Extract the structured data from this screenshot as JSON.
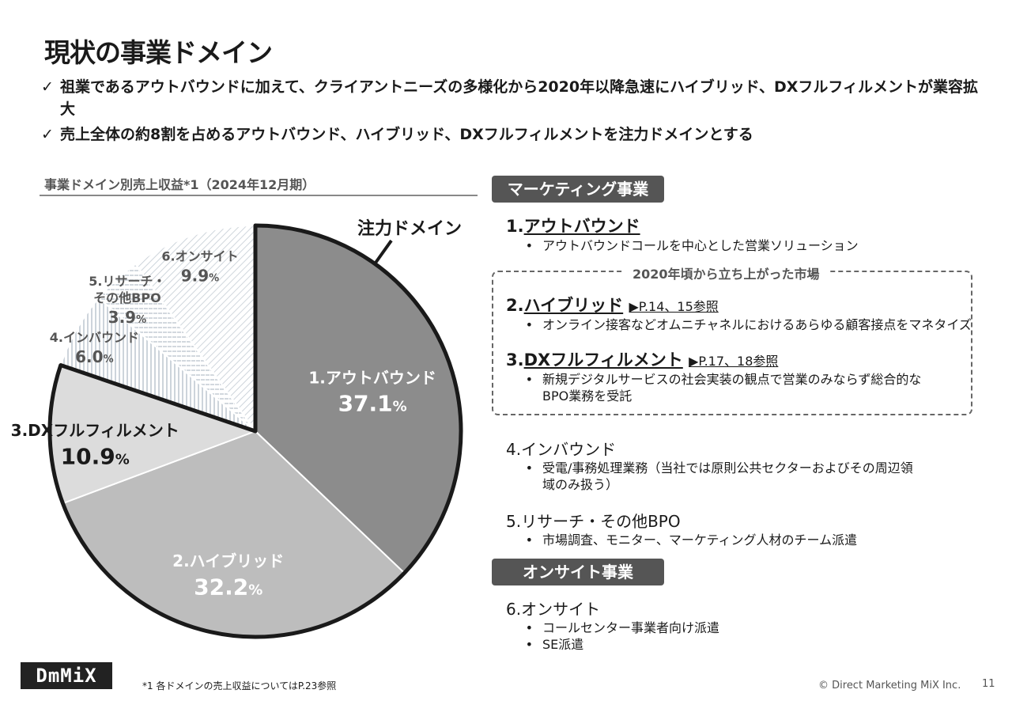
{
  "title": "現状の事業ドメイン",
  "bullets": [
    {
      "check": "✓",
      "text": "祖業であるアウトバウンドに加えて、クライアントニーズの多様化から2020年以降急速にハイブリッド、DXフルフィルメントが業容拡大"
    },
    {
      "check": "✓",
      "text": "売上全体の約8割を占めるアウトバウンド、ハイブリッド、DXフルフィルメントを注力ドメインとする"
    }
  ],
  "chart_label": "事業ドメイン別売上収益*1（2024年12月期）",
  "focus_label": "注力ドメイン",
  "chart_data": {
    "type": "pie",
    "unit": "%",
    "slices": [
      {
        "label": "1.アウトバウンド",
        "value": 37.1,
        "display": "37.1",
        "color": "#8c8c8c",
        "text_color": "#ffffff"
      },
      {
        "label": "2.ハイブリッド",
        "value": 32.2,
        "display": "32.2",
        "color": "#bdbdbd",
        "text_color": "#ffffff"
      },
      {
        "label": "3.DXフルフィルメント",
        "value": 10.9,
        "display": "10.9",
        "color": "#dcdcdc",
        "text_color": "#1a1a1a"
      },
      {
        "label": "4.インバウンド",
        "value": 6.0,
        "display": "6.0",
        "color": "#ffffff",
        "text_color": "#555555"
      },
      {
        "label": "5.リサーチ・その他BPO",
        "label_lines": [
          "5.リサーチ・",
          "その他BPO"
        ],
        "value": 3.9,
        "display": "3.9",
        "color": "#ffffff",
        "text_color": "#555555"
      },
      {
        "label": "6.オンサイト",
        "value": 9.9,
        "display": "9.9",
        "color": "#ffffff",
        "text_color": "#555555"
      }
    ]
  },
  "marketing": {
    "header": "マーケティング事業",
    "market_label": "2020年頃から立ち上がった市場",
    "items": [
      {
        "num": "1.",
        "name": "アウトバウンド",
        "ref": "",
        "desc": [
          "アウトバウンドコールを中心とした営業ソリューション"
        ]
      },
      {
        "num": "2.",
        "name": "ハイブリッド",
        "ref": "▶P.14、15参照",
        "desc": [
          "オンライン接客などオムニチャネルにおけるあらゆる顧客接点をマネタイズ"
        ]
      },
      {
        "num": "3.",
        "name": "DXフルフィルメント",
        "ref": "▶P.17、18参照",
        "desc": [
          "新規デジタルサービスの社会実装の観点で営業のみならず総合的な",
          "BPO業務を受託"
        ]
      },
      {
        "title": "4.インバウンド",
        "desc": [
          "受電/事務処理業務（当社では原則公共セクターおよびその周辺領",
          "域のみ扱う）"
        ]
      },
      {
        "title": "5.リサーチ・その他BPO",
        "desc": [
          "市場調査、モニター、マーケティング人材のチーム派遣"
        ]
      }
    ]
  },
  "onsite": {
    "header": "オンサイト事業",
    "title": "6.オンサイト",
    "desc": [
      "コールセンター事業者向け派遣",
      "SE派遣"
    ]
  },
  "bullet_char": "•",
  "footnote": "*1 各ドメインの売上収益についてはP.23参照",
  "copyright": "© Direct Marketing MiX Inc.",
  "page_number": "11",
  "logo_text": "DmMiX"
}
